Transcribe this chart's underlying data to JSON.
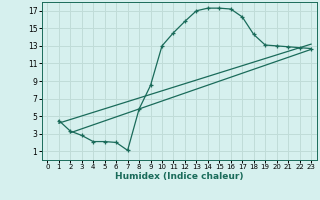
{
  "xlabel": "Humidex (Indice chaleur)",
  "bg_color": "#d6f0ee",
  "grid_color": "#c0dcd8",
  "line_color": "#1a6b5a",
  "xlim": [
    -0.5,
    23.5
  ],
  "ylim": [
    0,
    18
  ],
  "xticks": [
    0,
    1,
    2,
    3,
    4,
    5,
    6,
    7,
    8,
    9,
    10,
    11,
    12,
    13,
    14,
    15,
    16,
    17,
    18,
    19,
    20,
    21,
    22,
    23
  ],
  "yticks": [
    1,
    3,
    5,
    7,
    9,
    11,
    13,
    15,
    17
  ],
  "line1_x": [
    1,
    2,
    3,
    4,
    5,
    6,
    7,
    8,
    9,
    10,
    11,
    12,
    13,
    14,
    15,
    16,
    17,
    18,
    19,
    20,
    21,
    22,
    23
  ],
  "line1_y": [
    4.5,
    3.3,
    2.8,
    2.1,
    2.1,
    2.0,
    1.1,
    5.8,
    8.5,
    13.0,
    14.5,
    15.8,
    17.0,
    17.3,
    17.3,
    17.2,
    16.3,
    14.3,
    13.1,
    13.0,
    12.9,
    12.8,
    12.7
  ],
  "line2_x": [
    1,
    23
  ],
  "line2_y": [
    4.2,
    13.2
  ],
  "line3_x": [
    2,
    23
  ],
  "line3_y": [
    3.1,
    12.6
  ]
}
